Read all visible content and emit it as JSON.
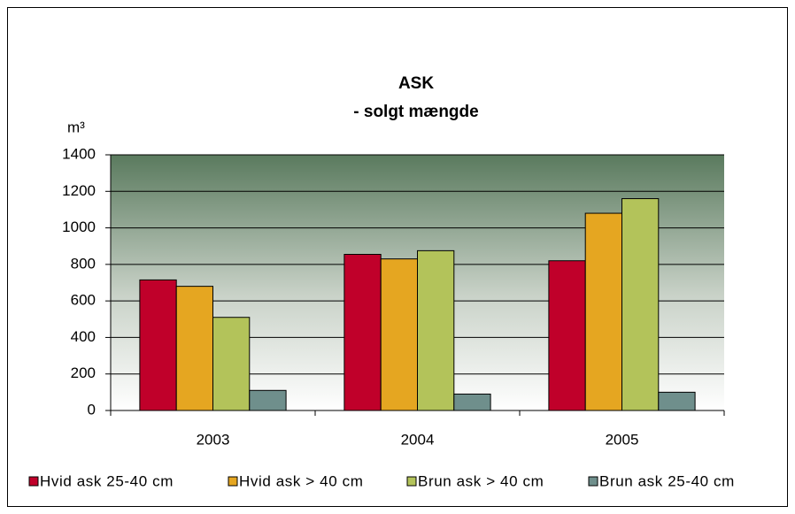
{
  "chart_data": {
    "type": "bar",
    "title": "ASK",
    "subtitle": "- solgt mængde",
    "ylabel": "m³",
    "categories": [
      "2003",
      "2004",
      "2005"
    ],
    "series": [
      {
        "name": "Hvid ask 25-40 cm",
        "color": "#c0002a",
        "values": [
          715,
          855,
          820
        ]
      },
      {
        "name": "Hvid ask > 40 cm",
        "color": "#e5a621",
        "values": [
          680,
          830,
          1080
        ]
      },
      {
        "name": "Brun ask > 40 cm",
        "color": "#b3c35a",
        "values": [
          510,
          875,
          1160
        ]
      },
      {
        "name": "Brun ask  25-40 cm",
        "color": "#6f8f8c",
        "values": [
          110,
          90,
          100
        ]
      }
    ],
    "ylim": [
      0,
      1400
    ],
    "yticks": [
      0,
      200,
      400,
      600,
      800,
      1000,
      1200,
      1400
    ],
    "grid": true,
    "legend": "bottom"
  }
}
